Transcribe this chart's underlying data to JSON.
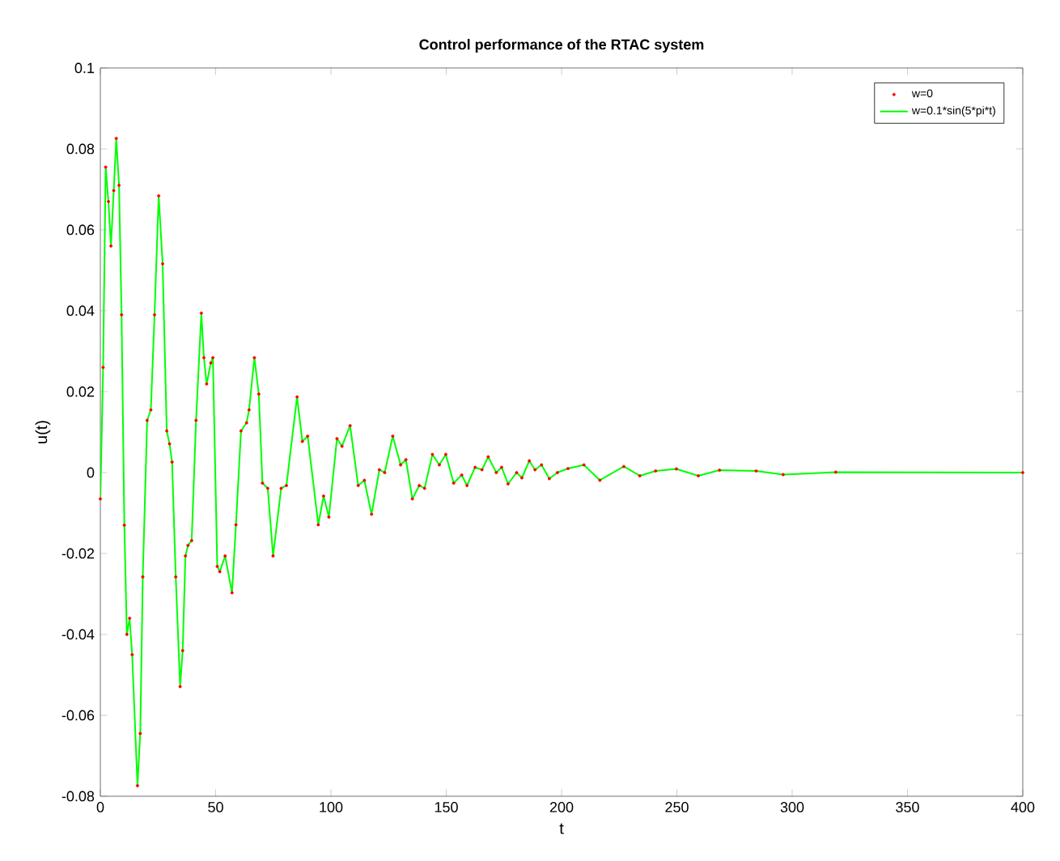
{
  "chart_data": {
    "type": "line",
    "title": "Control performance of the RTAC system",
    "xlabel": "t",
    "ylabel": "u(t)",
    "x": [
      0,
      1.2,
      2.3,
      3.5,
      4.6,
      5.8,
      6.9,
      8.1,
      9.2,
      10.4,
      11.5,
      12.7,
      13.8,
      16.1,
      17.3,
      18.4,
      20.3,
      21.9,
      23.5,
      25.3,
      27,
      28.8,
      30,
      31.1,
      32.7,
      34.6,
      35.7,
      36.9,
      38,
      39.6,
      41.5,
      43.8,
      44.9,
      46.1,
      47.9,
      48.8,
      50.7,
      51.8,
      54.1,
      57.1,
      58.8,
      61,
      63.4,
      64.5,
      66.8,
      68.7,
      70.3,
      72.6,
      74.9,
      78.4,
      80.7,
      85.3,
      87.6,
      89.9,
      94.5,
      96.8,
      99.1,
      102.6,
      104.8,
      108.3,
      111.8,
      114.5,
      117.6,
      121,
      123.3,
      126.8,
      130.2,
      132.5,
      135.3,
      138.3,
      140.6,
      144,
      147,
      149.8,
      153.2,
      156.7,
      159,
      162.5,
      165.5,
      168.2,
      171.7,
      174,
      176.8,
      180.5,
      182.8,
      186,
      188.5,
      191.3,
      194.7,
      198.2,
      202.8,
      209.7,
      216.6,
      227,
      233.9,
      240.8,
      249.8,
      259.3,
      268.5,
      284.4,
      296.1,
      318.9,
      400
    ],
    "series": [
      {
        "name": "w=0",
        "type": "scatter",
        "color": "#ff0000",
        "values": [
          -0.0065,
          0.026,
          0.0755,
          0.067,
          0.056,
          0.0697,
          0.0826,
          0.071,
          0.039,
          -0.013,
          -0.04,
          -0.036,
          -0.045,
          -0.0774,
          -0.0645,
          -0.0258,
          0.0129,
          0.0155,
          0.039,
          0.0684,
          0.0516,
          0.0103,
          0.0071,
          0.0026,
          -0.0258,
          -0.0529,
          -0.044,
          -0.0206,
          -0.018,
          -0.0168,
          0.0129,
          0.0394,
          0.0284,
          0.0219,
          0.0271,
          0.0284,
          -0.0232,
          -0.0245,
          -0.0206,
          -0.0297,
          -0.0129,
          0.0103,
          0.0123,
          0.0155,
          0.0284,
          0.0194,
          -0.0026,
          -0.0039,
          -0.0206,
          -0.0039,
          -0.0032,
          0.0187,
          0.0077,
          0.009,
          -0.0129,
          -0.0058,
          -0.011,
          0.0084,
          0.0065,
          0.0116,
          -0.0032,
          -0.0019,
          -0.0103,
          0.0007,
          0,
          0.009,
          0.0019,
          0.0032,
          -0.0065,
          -0.0032,
          -0.0039,
          0.0045,
          0.0019,
          0.0045,
          -0.0026,
          -0.0006,
          -0.0032,
          0.0013,
          0.0007,
          0.0039,
          0,
          0.0013,
          -0.0028,
          0,
          -0.0013,
          0.0029,
          0.0007,
          0.0019,
          -0.0015,
          0,
          0.001,
          0.0019,
          -0.0019,
          0.0015,
          -0.0008,
          0.0004,
          0.0009,
          -0.0008,
          0.0006,
          0.0004,
          -0.0005,
          0.0001,
          0
        ]
      },
      {
        "name": "w=0.1*sin(5*pi*t)",
        "type": "line",
        "color": "#00ff00",
        "values": [
          -0.0065,
          0.026,
          0.0755,
          0.067,
          0.056,
          0.0697,
          0.0826,
          0.071,
          0.039,
          -0.013,
          -0.04,
          -0.036,
          -0.045,
          -0.0774,
          -0.0645,
          -0.0258,
          0.0129,
          0.0155,
          0.039,
          0.0684,
          0.0516,
          0.0103,
          0.0071,
          0.0026,
          -0.0258,
          -0.0529,
          -0.044,
          -0.0206,
          -0.018,
          -0.0168,
          0.0129,
          0.0394,
          0.0284,
          0.0219,
          0.0271,
          0.0284,
          -0.0232,
          -0.0245,
          -0.0206,
          -0.0297,
          -0.0129,
          0.0103,
          0.0123,
          0.0155,
          0.0284,
          0.0194,
          -0.0026,
          -0.0039,
          -0.0206,
          -0.0039,
          -0.0032,
          0.0187,
          0.0077,
          0.009,
          -0.0129,
          -0.0058,
          -0.011,
          0.0084,
          0.0065,
          0.0116,
          -0.0032,
          -0.0019,
          -0.0103,
          0.0007,
          0,
          0.009,
          0.0019,
          0.0032,
          -0.0065,
          -0.0032,
          -0.0039,
          0.0045,
          0.0019,
          0.0045,
          -0.0026,
          -0.0006,
          -0.0032,
          0.0013,
          0.0007,
          0.0039,
          0,
          0.0013,
          -0.0028,
          0,
          -0.0013,
          0.0029,
          0.0007,
          0.0019,
          -0.0015,
          0,
          0.001,
          0.0019,
          -0.0019,
          0.0015,
          -0.0008,
          0.0004,
          0.0009,
          -0.0008,
          0.0006,
          0.0004,
          -0.0005,
          0.0001,
          0
        ]
      }
    ],
    "xlim": [
      0,
      400
    ],
    "ylim": [
      -0.08,
      0.1
    ],
    "xticks": [
      0,
      50,
      100,
      150,
      200,
      250,
      300,
      350,
      400
    ],
    "yticks": [
      -0.08,
      -0.06,
      -0.04,
      -0.02,
      0,
      0.02,
      0.04,
      0.06,
      0.08,
      0.1
    ],
    "legend": "top right"
  }
}
